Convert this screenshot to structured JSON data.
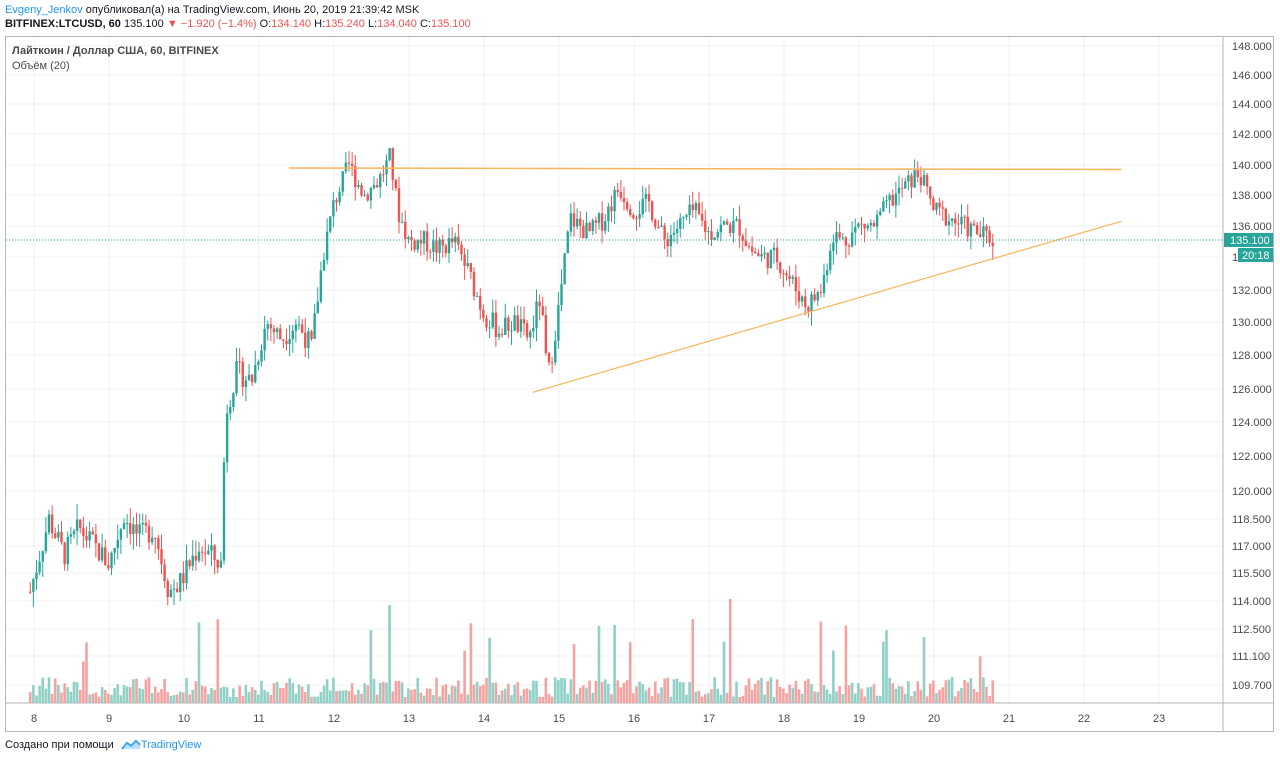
{
  "header": {
    "author": "Evgeny_Jenkov",
    "published_text": "опубликовал(а) на TradingView.com, Июнь 20, 2019 21:39:42 MSK",
    "symbol": "BITFINEX:LTCUSD, 60",
    "last": "135.100",
    "change": "−1.920 (−1.4%)",
    "o_label": "O:",
    "o": "134.140",
    "h_label": "H:",
    "h": "135.240",
    "l_label": "L:",
    "l": "134.040",
    "c_label": "C:",
    "c": "135.100"
  },
  "legend": {
    "title": "Лайткоин / Доллар США, 60, BITFINEX",
    "volume": "Объём (20)"
  },
  "price_label": {
    "value": "135.100",
    "countdown": "20:18"
  },
  "footer": {
    "text": "Создано при помощи",
    "brand": "TradingView"
  },
  "colors": {
    "up": "#26a69a",
    "down": "#ef5350",
    "up_vol": "#8fd0c7",
    "down_vol": "#f5a3a1",
    "trendline": "#f7b559",
    "grid": "#eef0f3"
  },
  "chart_data": {
    "type": "candlestick",
    "timeframe": "60",
    "x_ticks": [
      "8",
      "9",
      "10",
      "11",
      "12",
      "13",
      "14",
      "15",
      "16",
      "17",
      "18",
      "19",
      "20",
      "21",
      "22",
      "23"
    ],
    "y_ticks": [
      "148.000",
      "146.000",
      "144.000",
      "142.000",
      "140.000",
      "138.000",
      "136.000",
      "134.000",
      "132.000",
      "130.000",
      "128.000",
      "126.000",
      "124.000",
      "122.000",
      "120.000",
      "118.500",
      "117.000",
      "115.500",
      "114.000",
      "112.500",
      "111.100",
      "109.700"
    ],
    "close_path": [
      [
        7.95,
        114.5
      ],
      [
        8.2,
        118.5
      ],
      [
        8.4,
        116.5
      ],
      [
        8.6,
        118.0
      ],
      [
        8.8,
        117.0
      ],
      [
        9.0,
        116.0
      ],
      [
        9.2,
        118.7
      ],
      [
        9.4,
        117.5
      ],
      [
        9.6,
        118.0
      ],
      [
        9.8,
        114.5
      ],
      [
        9.95,
        115.0
      ],
      [
        10.2,
        117.0
      ],
      [
        10.5,
        116.0
      ],
      [
        10.55,
        124.5
      ],
      [
        10.7,
        127.0
      ],
      [
        10.9,
        126.5
      ],
      [
        11.1,
        130.0
      ],
      [
        11.3,
        129.0
      ],
      [
        11.5,
        130.0
      ],
      [
        11.7,
        128.5
      ],
      [
        11.85,
        134.0
      ],
      [
        12.0,
        137.5
      ],
      [
        12.2,
        140.0
      ],
      [
        12.4,
        138.0
      ],
      [
        12.6,
        139.0
      ],
      [
        12.75,
        140.5
      ],
      [
        12.85,
        137.0
      ],
      [
        13.0,
        135.0
      ],
      [
        13.2,
        135.0
      ],
      [
        13.4,
        134.5
      ],
      [
        13.6,
        135.0
      ],
      [
        13.8,
        133.0
      ],
      [
        14.0,
        130.5
      ],
      [
        14.2,
        129.5
      ],
      [
        14.4,
        130.0
      ],
      [
        14.6,
        129.0
      ],
      [
        14.75,
        131.5
      ],
      [
        14.85,
        126.5
      ],
      [
        15.0,
        131.0
      ],
      [
        15.15,
        136.5
      ],
      [
        15.4,
        135.5
      ],
      [
        15.6,
        136.5
      ],
      [
        15.8,
        138.5
      ],
      [
        16.0,
        137.0
      ],
      [
        16.2,
        137.5
      ],
      [
        16.4,
        135.0
      ],
      [
        16.6,
        136.0
      ],
      [
        16.8,
        137.0
      ],
      [
        17.0,
        135.5
      ],
      [
        17.2,
        136.0
      ],
      [
        17.4,
        136.0
      ],
      [
        17.55,
        134.5
      ],
      [
        17.7,
        134.0
      ],
      [
        17.9,
        134.0
      ],
      [
        18.1,
        132.5
      ],
      [
        18.3,
        131.0
      ],
      [
        18.5,
        132.0
      ],
      [
        18.65,
        135.5
      ],
      [
        18.8,
        135.0
      ],
      [
        19.0,
        136.0
      ],
      [
        19.2,
        136.0
      ],
      [
        19.4,
        137.5
      ],
      [
        19.6,
        138.5
      ],
      [
        19.8,
        139.5
      ],
      [
        20.0,
        137.0
      ],
      [
        20.2,
        136.5
      ],
      [
        20.4,
        136.0
      ],
      [
        20.6,
        135.5
      ],
      [
        20.8,
        135.1
      ]
    ],
    "resistance_line": {
      "x": [
        11.4,
        22.5
      ],
      "y": [
        139.8,
        139.7
      ]
    },
    "support_line": {
      "x": [
        14.65,
        22.5
      ],
      "y": [
        125.8,
        136.3
      ]
    },
    "last_price": 135.1,
    "volume_series": "Объём (20)"
  }
}
